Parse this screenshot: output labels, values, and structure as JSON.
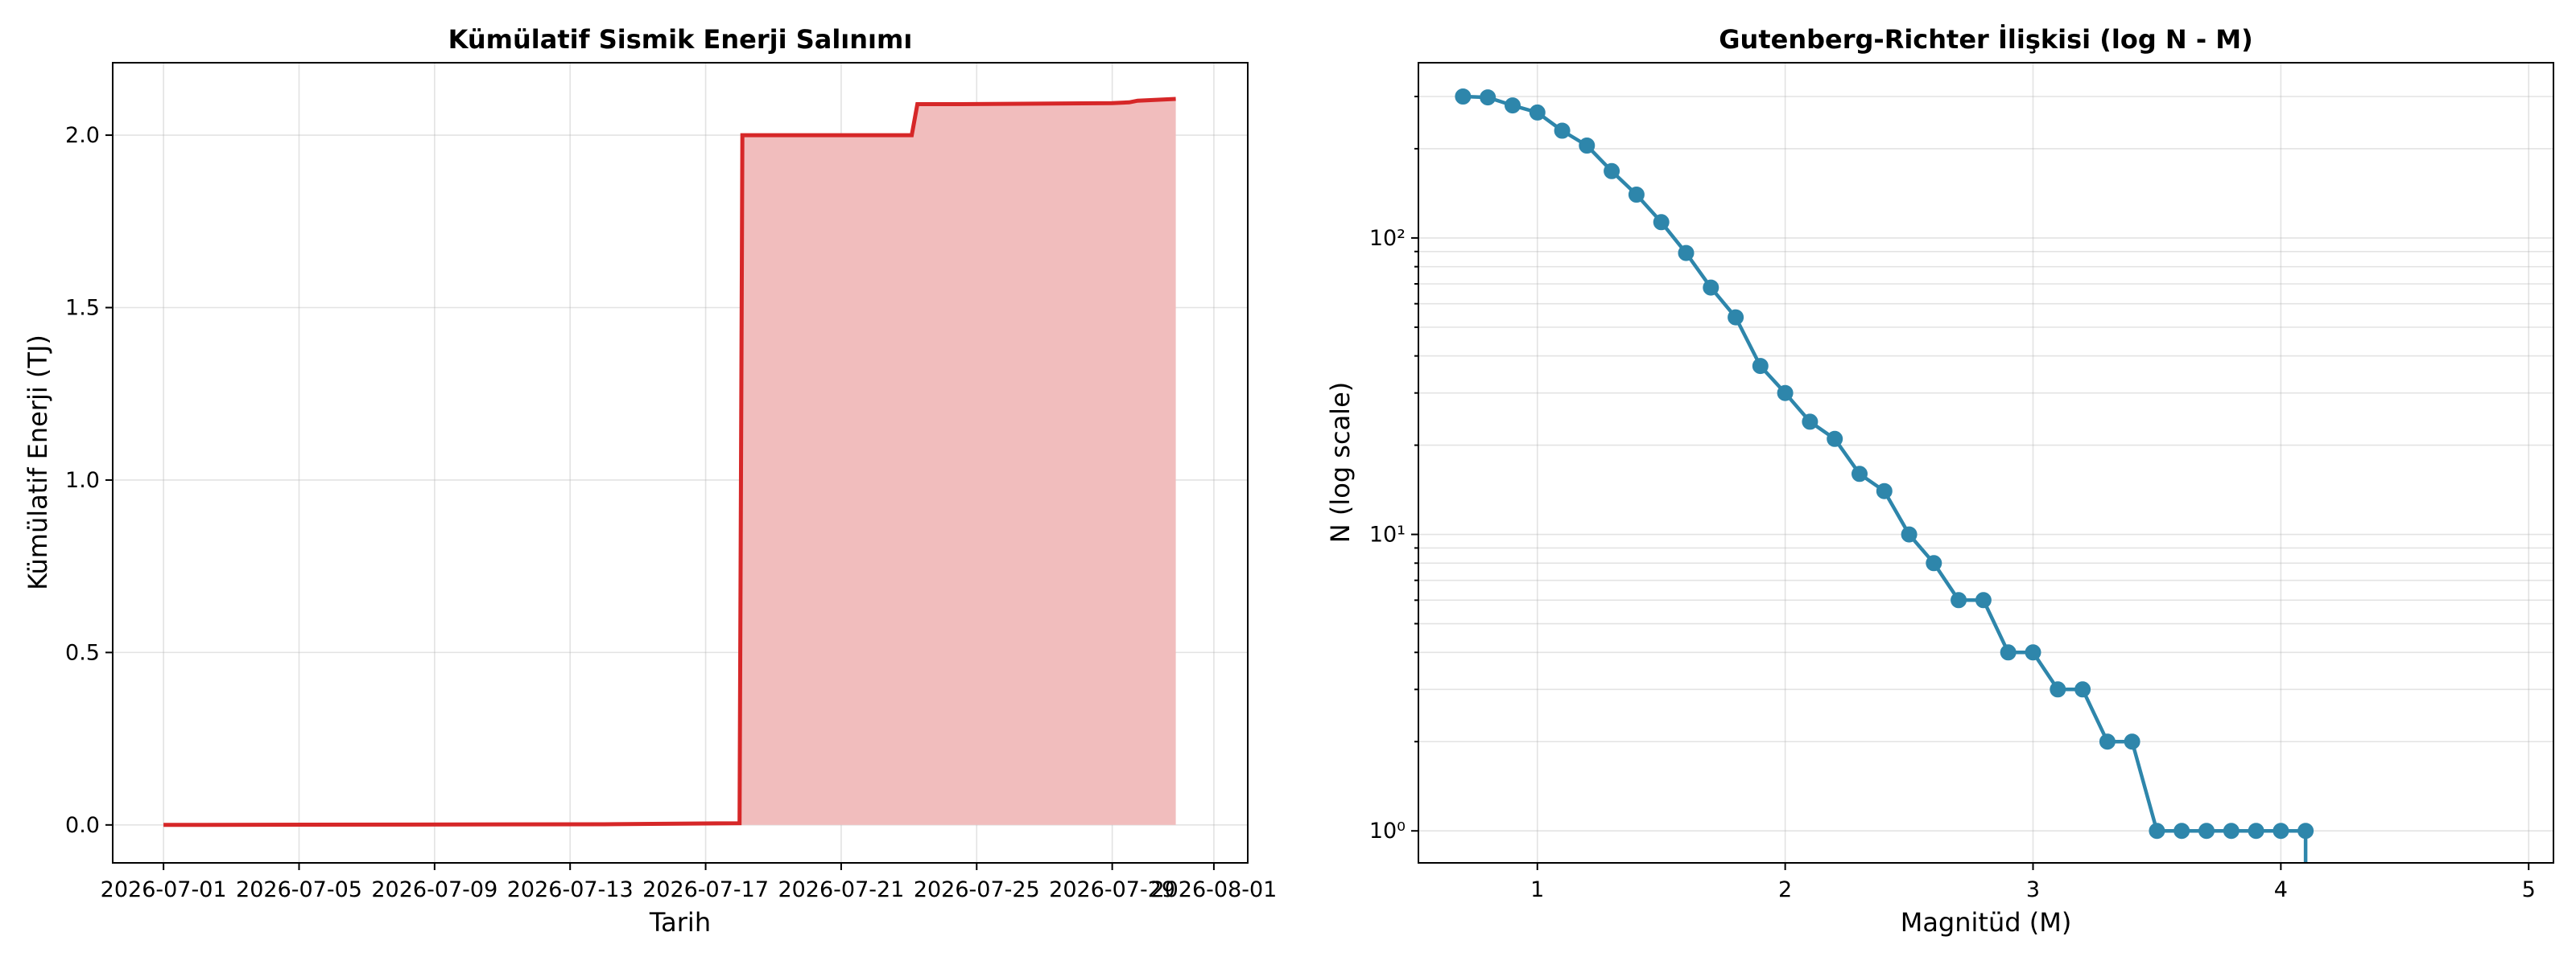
{
  "chart_data": [
    {
      "type": "area",
      "title": "Kümülatif Sismik Enerji Salınımı",
      "xlabel": "Tarih",
      "ylabel": "Kümülatif Enerji (TJ)",
      "x_ticks": [
        "2026-07-01",
        "2026-07-05",
        "2026-07-09",
        "2026-07-13",
        "2026-07-17",
        "2026-07-21",
        "2026-07-25",
        "2026-07-29",
        "2026-08-01"
      ],
      "y_ticks": [
        "0.0",
        "0.5",
        "1.0",
        "1.5",
        "2.0"
      ],
      "ylim": [
        -0.11,
        2.21
      ],
      "xlim": [
        "2026-06-29 12:00",
        "2026-08-02 00:00"
      ],
      "grid": true,
      "series": [
        {
          "color": "#d62728",
          "fill_color": "#f1bdbd",
          "step": "post",
          "points": [
            [
              "2026-07-01 00:00",
              0.0
            ],
            [
              "2026-07-14 00:00",
              0.002
            ],
            [
              "2026-07-18 00:00",
              0.005
            ],
            [
              "2026-07-18 02:00",
              2.0
            ],
            [
              "2026-07-23 02:00",
              2.0
            ],
            [
              "2026-07-23 06:00",
              2.09
            ],
            [
              "2026-07-24 12:00",
              2.09
            ],
            [
              "2026-07-29 00:00",
              2.093
            ],
            [
              "2026-07-29 12:00",
              2.095
            ],
            [
              "2026-07-29 18:00",
              2.1
            ],
            [
              "2026-07-30 21:00",
              2.105
            ]
          ]
        }
      ]
    },
    {
      "type": "line",
      "title": "Gutenberg-Richter İlişkisi (log N - M)",
      "xlabel": "Magnitüd (M)",
      "ylabel": "N (log scale)",
      "x_ticks": [
        "1",
        "2",
        "3",
        "4",
        "5"
      ],
      "y_ticks": [
        "10⁰",
        "10¹",
        "10²"
      ],
      "yscale": "log",
      "xlim": [
        0.52,
        5.1
      ],
      "ylim": [
        0.78,
        390
      ],
      "grid": true,
      "series": [
        {
          "color": "#2e86ab",
          "marker": "circle",
          "x": [
            0.7,
            0.8,
            0.9,
            1.0,
            1.1,
            1.2,
            1.3,
            1.4,
            1.5,
            1.6,
            1.7,
            1.8,
            1.9,
            2.0,
            2.1,
            2.2,
            2.3,
            2.4,
            2.5,
            2.6,
            2.7,
            2.8,
            2.9,
            3.0,
            3.1,
            3.2,
            3.3,
            3.4,
            3.5,
            3.6,
            3.7,
            3.8,
            3.9,
            4.0,
            4.1
          ],
          "y": [
            300,
            298,
            280,
            265,
            230,
            205,
            168,
            140,
            113,
            89,
            68,
            54,
            37,
            30,
            24,
            21,
            16,
            14,
            10,
            8,
            6,
            6,
            4,
            4,
            3,
            3,
            2,
            2,
            1,
            1,
            1,
            1,
            1,
            1,
            1
          ]
        }
      ]
    }
  ]
}
